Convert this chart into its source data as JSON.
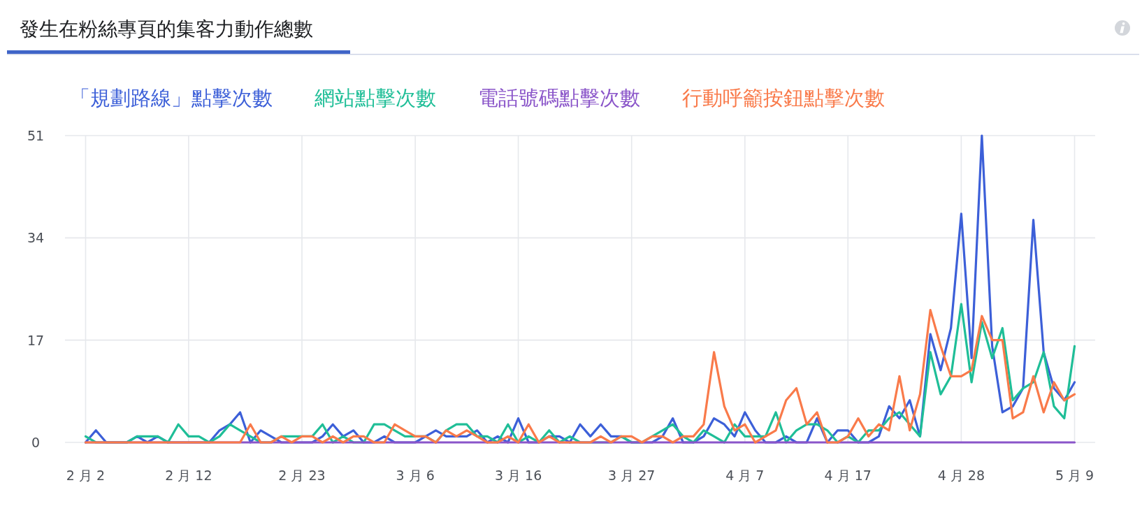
{
  "chart_data": {
    "type": "line",
    "title": "發生在粉絲專頁的集客力動作總數",
    "x": [
      "--02-02",
      "--02-03",
      "--02-04",
      "--02-05",
      "--02-06",
      "--02-07",
      "--02-08",
      "--02-09",
      "--02-10",
      "--02-11",
      "--02-12",
      "--02-13",
      "--02-14",
      "--02-15",
      "--02-16",
      "--02-17",
      "--02-18",
      "--02-19",
      "--02-20",
      "--02-21",
      "--02-22",
      "--02-23",
      "--02-24",
      "--02-25",
      "--02-26",
      "--02-27",
      "--02-28",
      "--03-01",
      "--03-02",
      "--03-03",
      "--03-04",
      "--03-05",
      "--03-06",
      "--03-07",
      "--03-08",
      "--03-09",
      "--03-10",
      "--03-11",
      "--03-12",
      "--03-13",
      "--03-14",
      "--03-15",
      "--03-16",
      "--03-17",
      "--03-18",
      "--03-19",
      "--03-20",
      "--03-21",
      "--03-22",
      "--03-23",
      "--03-24",
      "--03-25",
      "--03-26",
      "--03-27",
      "--03-28",
      "--03-29",
      "--03-30",
      "--03-31",
      "--04-01",
      "--04-02",
      "--04-03",
      "--04-04",
      "--04-05",
      "--04-06",
      "--04-07",
      "--04-08",
      "--04-09",
      "--04-10",
      "--04-11",
      "--04-12",
      "--04-13",
      "--04-14",
      "--04-15",
      "--04-16",
      "--04-17",
      "--04-18",
      "--04-19",
      "--04-20",
      "--04-21",
      "--04-22",
      "--04-23",
      "--04-24",
      "--04-25",
      "--04-26",
      "--04-27",
      "--04-28",
      "--04-29",
      "--04-30",
      "--05-01",
      "--05-02",
      "--05-03",
      "--05-04",
      "--05-05",
      "--05-06",
      "--05-07",
      "--05-08",
      "--05-09"
    ],
    "series": [
      {
        "name": "「規劃路線」點擊次數",
        "color": "#3c5fd8",
        "values": [
          0,
          2,
          0,
          0,
          0,
          1,
          0,
          1,
          0,
          0,
          0,
          0,
          0,
          2,
          3,
          5,
          0,
          2,
          1,
          0,
          0,
          0,
          0,
          1,
          3,
          1,
          2,
          0,
          0,
          1,
          0,
          0,
          0,
          1,
          2,
          1,
          1,
          1,
          2,
          0,
          1,
          0,
          4,
          0,
          0,
          1,
          1,
          0,
          3,
          1,
          3,
          1,
          1,
          0,
          0,
          0,
          1,
          4,
          0,
          0,
          1,
          4,
          3,
          1,
          5,
          2,
          0,
          0,
          1,
          0,
          0,
          4,
          0,
          2,
          2,
          0,
          0,
          1,
          6,
          4,
          7,
          1,
          18,
          12,
          19,
          38,
          14,
          51,
          16,
          5,
          6,
          9,
          37,
          15,
          9,
          7,
          10
        ]
      },
      {
        "name": "網站點擊次數",
        "color": "#1fbe97",
        "values": [
          1,
          0,
          0,
          0,
          0,
          1,
          1,
          1,
          0,
          3,
          1,
          1,
          0,
          1,
          3,
          2,
          1,
          0,
          0,
          1,
          1,
          1,
          1,
          3,
          0,
          1,
          0,
          0,
          3,
          3,
          2,
          1,
          1,
          1,
          0,
          2,
          3,
          3,
          1,
          1,
          0,
          3,
          0,
          1,
          0,
          2,
          0,
          1,
          0,
          0,
          0,
          0,
          1,
          0,
          0,
          1,
          2,
          3,
          1,
          0,
          2,
          1,
          0,
          3,
          1,
          1,
          1,
          5,
          0,
          2,
          3,
          3,
          2,
          0,
          1,
          0,
          2,
          2,
          4,
          5,
          3,
          1,
          15,
          8,
          11,
          23,
          10,
          20,
          14,
          19,
          7,
          9,
          10,
          15,
          6,
          4,
          16
        ]
      },
      {
        "name": "電話號碼點擊次數",
        "color": "#8a55c9",
        "values": [
          0,
          0,
          0,
          0,
          0,
          0,
          0,
          0,
          0,
          0,
          0,
          0,
          0,
          0,
          0,
          0,
          0,
          0,
          0,
          0,
          0,
          0,
          0,
          0,
          0,
          0,
          0,
          0,
          0,
          0,
          0,
          0,
          0,
          0,
          0,
          0,
          0,
          0,
          0,
          0,
          0,
          0,
          0,
          0,
          0,
          0,
          0,
          0,
          0,
          0,
          0,
          0,
          0,
          0,
          0,
          0,
          0,
          0,
          0,
          0,
          0,
          0,
          0,
          0,
          0,
          0,
          0,
          0,
          0,
          0,
          0,
          0,
          0,
          0,
          0,
          0,
          0,
          0,
          0,
          0,
          0,
          0,
          0,
          0,
          0,
          0,
          0,
          0,
          0,
          0,
          0,
          0,
          0,
          0,
          0,
          0,
          0
        ]
      },
      {
        "name": "行動呼籲按鈕點擊次數",
        "color": "#f97a4a",
        "values": [
          0,
          0,
          0,
          0,
          0,
          0,
          0,
          0,
          0,
          0,
          0,
          0,
          0,
          0,
          0,
          0,
          3,
          0,
          0,
          1,
          0,
          1,
          1,
          0,
          1,
          0,
          1,
          1,
          0,
          0,
          3,
          2,
          1,
          1,
          0,
          2,
          1,
          2,
          1,
          0,
          0,
          1,
          0,
          3,
          0,
          1,
          0,
          0,
          0,
          0,
          1,
          0,
          1,
          1,
          0,
          1,
          1,
          0,
          1,
          1,
          3,
          15,
          6,
          2,
          3,
          0,
          1,
          2,
          7,
          9,
          3,
          5,
          0,
          0,
          1,
          4,
          1,
          3,
          2,
          11,
          2,
          8,
          22,
          16,
          11,
          11,
          12,
          21,
          17,
          17,
          4,
          5,
          11,
          5,
          10,
          7,
          8
        ]
      }
    ],
    "xlim": [
      "--01-31",
      "--05-11"
    ],
    "xticks": [
      {
        "value": "--02-02",
        "label": "2 月 2"
      },
      {
        "value": "--02-12",
        "label": "2 月 12"
      },
      {
        "value": "--02-23",
        "label": "2 月 23"
      },
      {
        "value": "--03-06",
        "label": "3 月 6"
      },
      {
        "value": "--03-16",
        "label": "3 月 16"
      },
      {
        "value": "--03-27",
        "label": "3 月 27"
      },
      {
        "value": "--04-07",
        "label": "4 月 7"
      },
      {
        "value": "--04-17",
        "label": "4 月 17"
      },
      {
        "value": "--04-28",
        "label": "4 月 28"
      },
      {
        "value": "--05-09",
        "label": "5 月 9"
      }
    ],
    "ylim": [
      0,
      51
    ],
    "yticks": [
      0,
      17,
      34,
      51
    ],
    "grid": true,
    "legend": "top left"
  }
}
